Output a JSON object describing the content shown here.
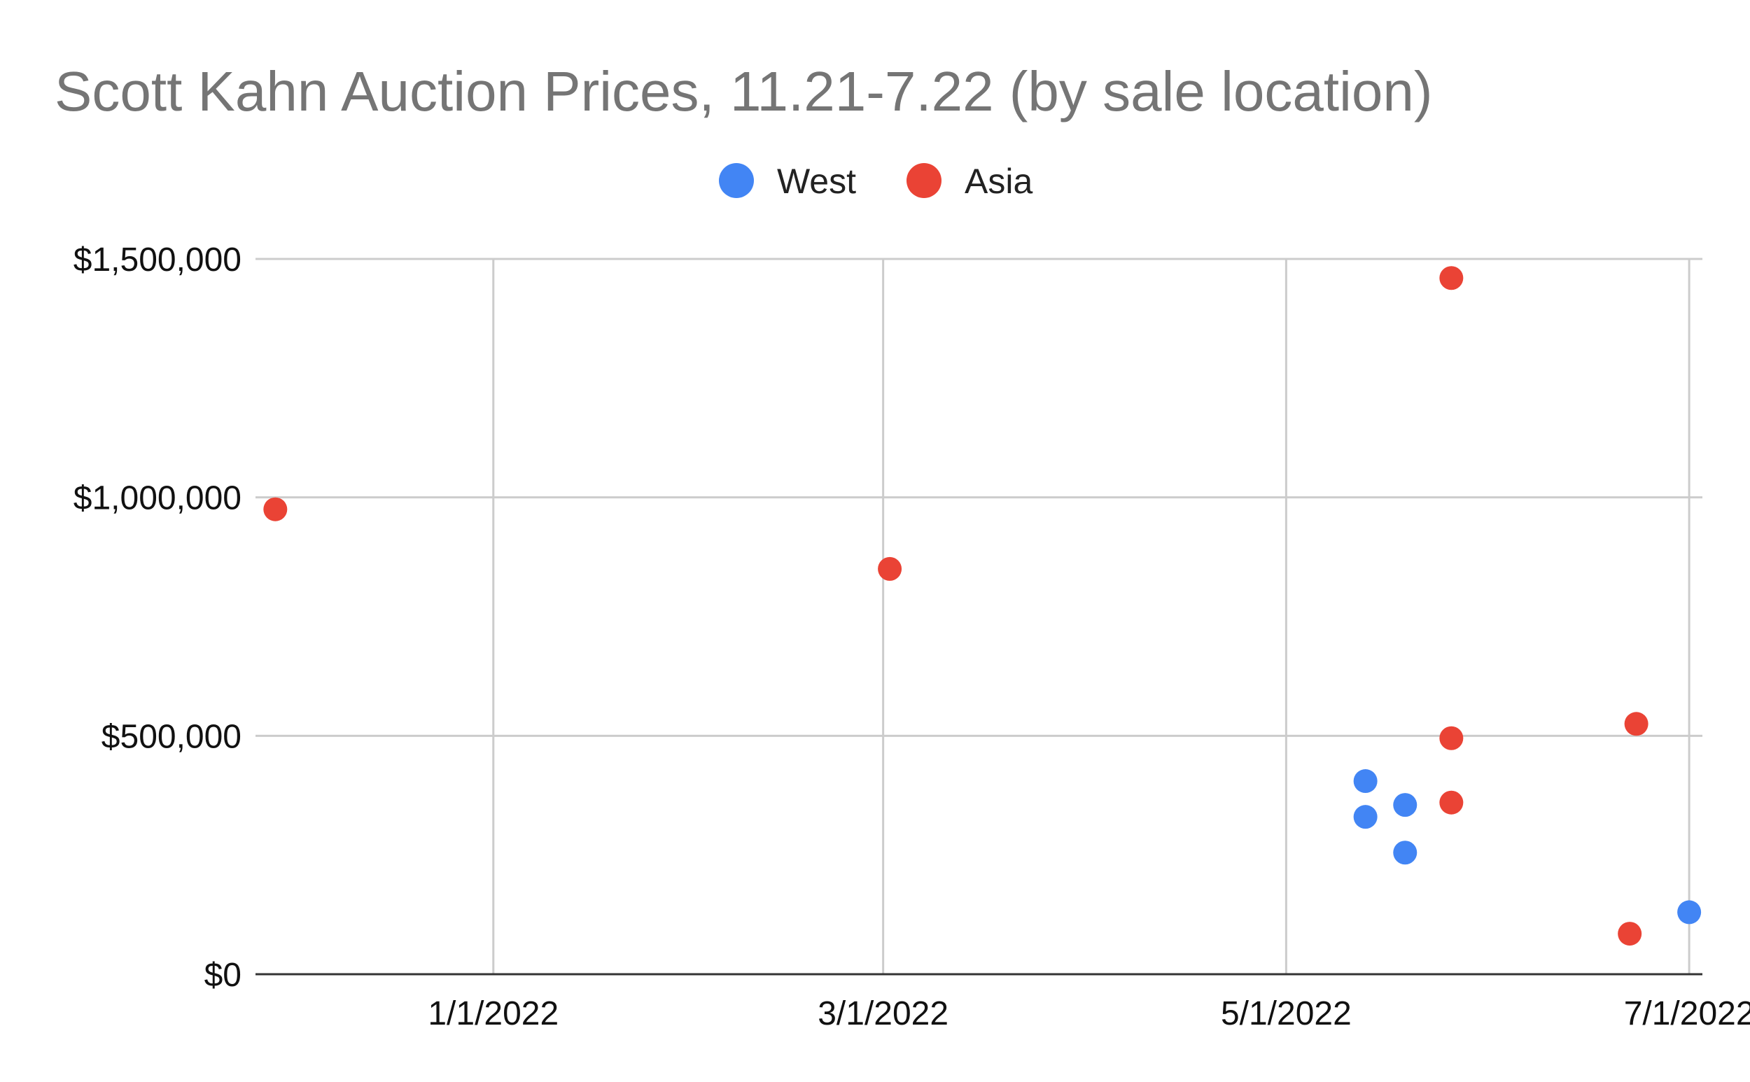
{
  "chart_data": {
    "type": "scatter",
    "title": "Scott Kahn Auction Prices, 11.21-7.22 (by sale location)",
    "xlabel": "",
    "ylabel": "",
    "x_axis": {
      "type": "date",
      "range": [
        "2021-11-26",
        "2022-07-03"
      ],
      "ticks": [
        {
          "value": "2022-01-01",
          "label": "1/1/2022"
        },
        {
          "value": "2022-03-01",
          "label": "3/1/2022"
        },
        {
          "value": "2022-05-01",
          "label": "5/1/2022"
        },
        {
          "value": "2022-07-01",
          "label": "7/1/2022"
        }
      ]
    },
    "y_axis": {
      "range": [
        0,
        1500000
      ],
      "ticks": [
        {
          "value": 0,
          "label": "$0"
        },
        {
          "value": 500000,
          "label": "$500,000"
        },
        {
          "value": 1000000,
          "label": "$1,000,000"
        },
        {
          "value": 1500000,
          "label": "$1,500,000"
        }
      ]
    },
    "grid": true,
    "legend": {
      "position": "top"
    },
    "series": [
      {
        "name": "West",
        "color": "#4285f4",
        "points": [
          {
            "x": "2022-05-13",
            "y": 405000
          },
          {
            "x": "2022-05-13",
            "y": 330000
          },
          {
            "x": "2022-05-19",
            "y": 355000
          },
          {
            "x": "2022-05-19",
            "y": 255000
          },
          {
            "x": "2022-07-01",
            "y": 130000
          }
        ]
      },
      {
        "name": "Asia",
        "color": "#ea4335",
        "points": [
          {
            "x": "2021-11-29",
            "y": 975000
          },
          {
            "x": "2022-03-02",
            "y": 850000
          },
          {
            "x": "2022-05-26",
            "y": 1460000
          },
          {
            "x": "2022-05-26",
            "y": 495000
          },
          {
            "x": "2022-05-26",
            "y": 360000
          },
          {
            "x": "2022-06-23",
            "y": 525000
          },
          {
            "x": "2022-06-22",
            "y": 85000
          }
        ]
      }
    ]
  }
}
